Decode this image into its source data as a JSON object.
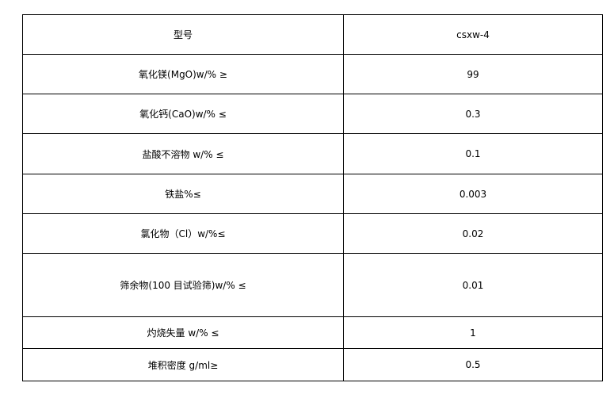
{
  "table": {
    "header": {
      "label": "型号",
      "value": "csxw-4"
    },
    "rows": [
      {
        "label": "氧化镁(MgO)w/% ≥",
        "value": "99"
      },
      {
        "label": "氧化钙(CaO)w/% ≤",
        "value": "0.3"
      },
      {
        "label": "盐酸不溶物 w/% ≤",
        "value": "0.1"
      },
      {
        "label": "铁盐%≤",
        "value": "0.003"
      },
      {
        "label": "氯化物（Cl）w/%≤",
        "value": "0.02"
      },
      {
        "label": "筛余物(100 目试验筛)w/% ≤",
        "value": "0.01"
      },
      {
        "label": "灼烧失量 w/% ≤",
        "value": "1"
      },
      {
        "label": "堆积密度 g/ml≥",
        "value": "0.5"
      }
    ]
  }
}
